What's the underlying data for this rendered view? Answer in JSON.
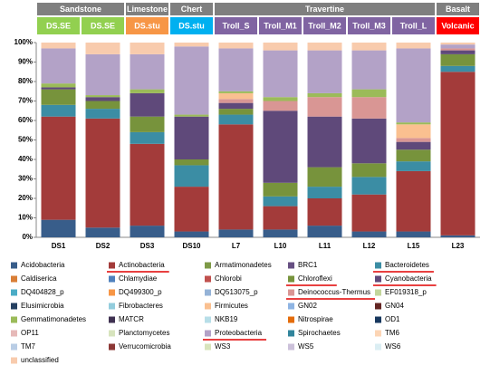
{
  "chart_data": {
    "type": "stacked_bar",
    "header": {
      "groups": [
        "Sandstone",
        "Limestone",
        "Chert",
        "Travertine",
        "Basalt"
      ],
      "samples": [
        {
          "label": "DS.SE",
          "color": "#92D050"
        },
        {
          "label": "DS.SE",
          "color": "#92D050"
        },
        {
          "label": "DS.stu",
          "color": "#F79646"
        },
        {
          "label": "DS.stu",
          "color": "#00B0F0"
        },
        {
          "label": "Troll_S",
          "color": "#8064A2"
        },
        {
          "label": "Troll_M1",
          "color": "#8064A2"
        },
        {
          "label": "Troll_M2",
          "color": "#8064A2"
        },
        {
          "label": "Troll_M3",
          "color": "#8064A2"
        },
        {
          "label": "Troll_L",
          "color": "#8064A2"
        },
        {
          "label": "Volcanic",
          "color": "#FF0000"
        }
      ]
    },
    "categories": [
      "DS1",
      "DS2",
      "DS3",
      "DS10",
      "L7",
      "L10",
      "L11",
      "L12",
      "L15",
      "L23"
    ],
    "ylim": [
      0,
      100
    ],
    "yticks": [
      {
        "value": 0,
        "label": "0%"
      },
      {
        "value": 10,
        "label": "10%"
      },
      {
        "value": 20,
        "label": "20%"
      },
      {
        "value": 30,
        "label": "30%"
      },
      {
        "value": 40,
        "label": "40%"
      },
      {
        "value": 50,
        "label": "50%"
      },
      {
        "value": 60,
        "label": "60%"
      },
      {
        "value": 70,
        "label": "70%"
      },
      {
        "value": 80,
        "label": "80%"
      },
      {
        "value": 90,
        "label": "90%"
      },
      {
        "value": 100,
        "label": "100%"
      }
    ],
    "series": [
      {
        "name": "Acidobacteria",
        "color": "#385D8A",
        "values": [
          9,
          5,
          6,
          3,
          4,
          4,
          6,
          3,
          3,
          1
        ]
      },
      {
        "name": "Actinobacteria",
        "color": "#A33B3A",
        "values": [
          53,
          56,
          42,
          23,
          54,
          12,
          14,
          19,
          31,
          84
        ],
        "highlight": true
      },
      {
        "name": "Armatimonadetes",
        "color": "#7E9A47",
        "values": [
          0,
          0,
          0,
          0,
          0,
          0,
          0,
          0,
          0,
          0
        ]
      },
      {
        "name": "BRC1",
        "color": "#664F82",
        "values": [
          0,
          0,
          0,
          0,
          0,
          0,
          0,
          0,
          0,
          0
        ]
      },
      {
        "name": "Bacteroidetes",
        "color": "#3B8DA4",
        "values": [
          6,
          5,
          6,
          11,
          5,
          5,
          6,
          9,
          5,
          3
        ],
        "highlight": true
      },
      {
        "name": "Caldiserica",
        "color": "#D97E36",
        "values": [
          0,
          0,
          0,
          0,
          0,
          0,
          0,
          0,
          0,
          0
        ]
      },
      {
        "name": "Chlamydiae",
        "color": "#4F81BD",
        "values": [
          0,
          0,
          0,
          0,
          0,
          0,
          0,
          0,
          0,
          0
        ]
      },
      {
        "name": "Chlorobi",
        "color": "#C0504D",
        "values": [
          0,
          0,
          0,
          0,
          0,
          0,
          0,
          0,
          0,
          0
        ]
      },
      {
        "name": "Chloroflexi",
        "color": "#77933C",
        "values": [
          8,
          4,
          8,
          3,
          3,
          7,
          10,
          7,
          6,
          6
        ],
        "highlight": true
      },
      {
        "name": "Cyanobacteria",
        "color": "#5F497A",
        "values": [
          1,
          2,
          12,
          22,
          3,
          37,
          26,
          23,
          4,
          2
        ],
        "highlight": true
      },
      {
        "name": "DQ404828_p",
        "color": "#4BACC6",
        "values": [
          0,
          0,
          0,
          0,
          0,
          0,
          0,
          0,
          0,
          0
        ]
      },
      {
        "name": "DQ499300_p",
        "color": "#F79646",
        "values": [
          0,
          0,
          0,
          0,
          0,
          0,
          0,
          0,
          0,
          0
        ]
      },
      {
        "name": "DQ513075_p",
        "color": "#95B3D7",
        "values": [
          0,
          0,
          0,
          0,
          0,
          0,
          0,
          0,
          0,
          0
        ]
      },
      {
        "name": "Deinococcus-Thermus",
        "color": "#D99694",
        "values": [
          0,
          0,
          0,
          0,
          2,
          5,
          10,
          11,
          2,
          1
        ],
        "highlight": true
      },
      {
        "name": "EF019318_p",
        "color": "#C3D69B",
        "values": [
          0,
          0,
          0,
          0,
          0,
          0,
          0,
          0,
          0,
          0
        ]
      },
      {
        "name": "Elusimicrobia",
        "color": "#254061",
        "values": [
          0,
          0,
          0,
          0,
          0,
          0,
          0,
          0,
          0,
          0
        ]
      },
      {
        "name": "Fibrobacteres",
        "color": "#93CDDD",
        "values": [
          0,
          0,
          0,
          0,
          0,
          0,
          0,
          0,
          0,
          0
        ]
      },
      {
        "name": "Firmicutes",
        "color": "#FAC090",
        "values": [
          0,
          0,
          0,
          0,
          3,
          0,
          0,
          0,
          7,
          0
        ]
      },
      {
        "name": "GN02",
        "color": "#8EB4E3",
        "values": [
          0,
          0,
          0,
          0,
          0,
          0,
          0,
          0,
          0,
          0
        ]
      },
      {
        "name": "GN04",
        "color": "#632523",
        "values": [
          0,
          0,
          0,
          0,
          0,
          0,
          0,
          0,
          0,
          0
        ]
      },
      {
        "name": "Gemmatimonadetes",
        "color": "#9BBB59",
        "values": [
          2,
          1,
          2,
          1,
          1,
          2,
          2,
          4,
          1,
          0
        ]
      },
      {
        "name": "MATCR",
        "color": "#3F3151",
        "values": [
          0,
          0,
          0,
          0,
          0,
          0,
          0,
          0,
          0,
          0
        ]
      },
      {
        "name": "NKB19",
        "color": "#B7DEE8",
        "values": [
          0,
          0,
          0,
          0,
          0,
          0,
          0,
          0,
          0,
          0
        ]
      },
      {
        "name": "Nitrospirae",
        "color": "#E46C0A",
        "values": [
          0,
          0,
          0,
          0,
          0,
          0,
          0,
          0,
          0,
          0
        ]
      },
      {
        "name": "OD1",
        "color": "#17375E",
        "values": [
          0,
          0,
          0,
          0,
          0,
          0,
          0,
          0,
          0,
          0
        ]
      },
      {
        "name": "OP11",
        "color": "#E6B9B8",
        "values": [
          0,
          0,
          0,
          0,
          0,
          0,
          0,
          0,
          0,
          0
        ]
      },
      {
        "name": "Planctomycetes",
        "color": "#D7E4BD",
        "values": [
          0,
          0,
          0,
          0,
          0,
          0,
          0,
          0,
          0,
          0
        ]
      },
      {
        "name": "Proteobacteria",
        "color": "#B3A2C7",
        "values": [
          18,
          21,
          18,
          35,
          22,
          24,
          22,
          20,
          38,
          2
        ],
        "highlight": true
      },
      {
        "name": "Spirochaetes",
        "color": "#31859C",
        "values": [
          0,
          0,
          0,
          0,
          0,
          0,
          0,
          0,
          0,
          0
        ]
      },
      {
        "name": "TM6",
        "color": "#FCD5B5",
        "values": [
          0,
          0,
          0,
          0,
          0,
          0,
          0,
          0,
          0,
          0
        ]
      },
      {
        "name": "TM7",
        "color": "#B9CDE5",
        "values": [
          0,
          0,
          0,
          0,
          0,
          0,
          0,
          0,
          0,
          0
        ]
      },
      {
        "name": "Verrucomicrobia",
        "color": "#8C3836",
        "values": [
          0,
          0,
          0,
          0,
          0,
          0,
          0,
          0,
          0,
          0
        ]
      },
      {
        "name": "WS3",
        "color": "#D8E4BC",
        "values": [
          0,
          0,
          0,
          0,
          0,
          0,
          0,
          0,
          0,
          0
        ]
      },
      {
        "name": "WS5",
        "color": "#CCC1DA",
        "values": [
          0,
          0,
          0,
          0,
          0,
          0,
          0,
          0,
          0,
          0
        ]
      },
      {
        "name": "WS6",
        "color": "#DBEEF3",
        "values": [
          0,
          0,
          0,
          0,
          0,
          0,
          0,
          0,
          0,
          0
        ]
      },
      {
        "name": "unclassified",
        "color": "#F8CBAD",
        "values": [
          3,
          6,
          6,
          2,
          3,
          4,
          4,
          4,
          3,
          1
        ]
      }
    ]
  }
}
